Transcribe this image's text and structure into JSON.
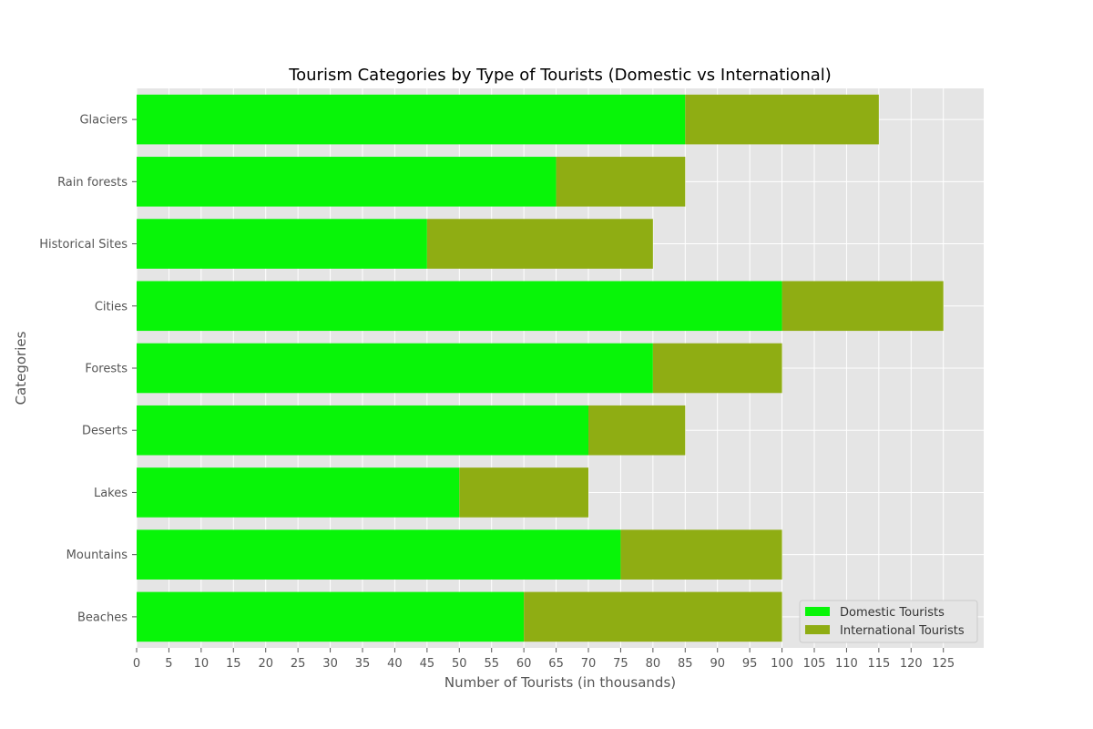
{
  "chart_data": {
    "type": "bar",
    "orientation": "horizontal",
    "stacked": true,
    "title": "Tourism Categories by Type of Tourists (Domestic vs International)",
    "xlabel": "Number of Tourists (in thousands)",
    "ylabel": "Categories",
    "categories": [
      "Beaches",
      "Mountains",
      "Lakes",
      "Deserts",
      "Forests",
      "Cities",
      "Historical Sites",
      "Rain forests",
      "Glaciers"
    ],
    "series": [
      {
        "name": "Domestic Tourists",
        "color": "#08f508",
        "values": [
          60,
          75,
          50,
          70,
          80,
          100,
          45,
          65,
          85
        ]
      },
      {
        "name": "International Tourists",
        "color": "#8fad13",
        "values": [
          40,
          25,
          20,
          15,
          20,
          25,
          35,
          20,
          30
        ]
      }
    ],
    "xlim": [
      0,
      131.25
    ],
    "xticks": [
      0,
      5,
      10,
      15,
      20,
      25,
      30,
      35,
      40,
      45,
      50,
      55,
      60,
      65,
      70,
      75,
      80,
      85,
      90,
      95,
      100,
      105,
      110,
      115,
      120,
      125
    ],
    "grid": true,
    "legend_position": "lower-right"
  }
}
